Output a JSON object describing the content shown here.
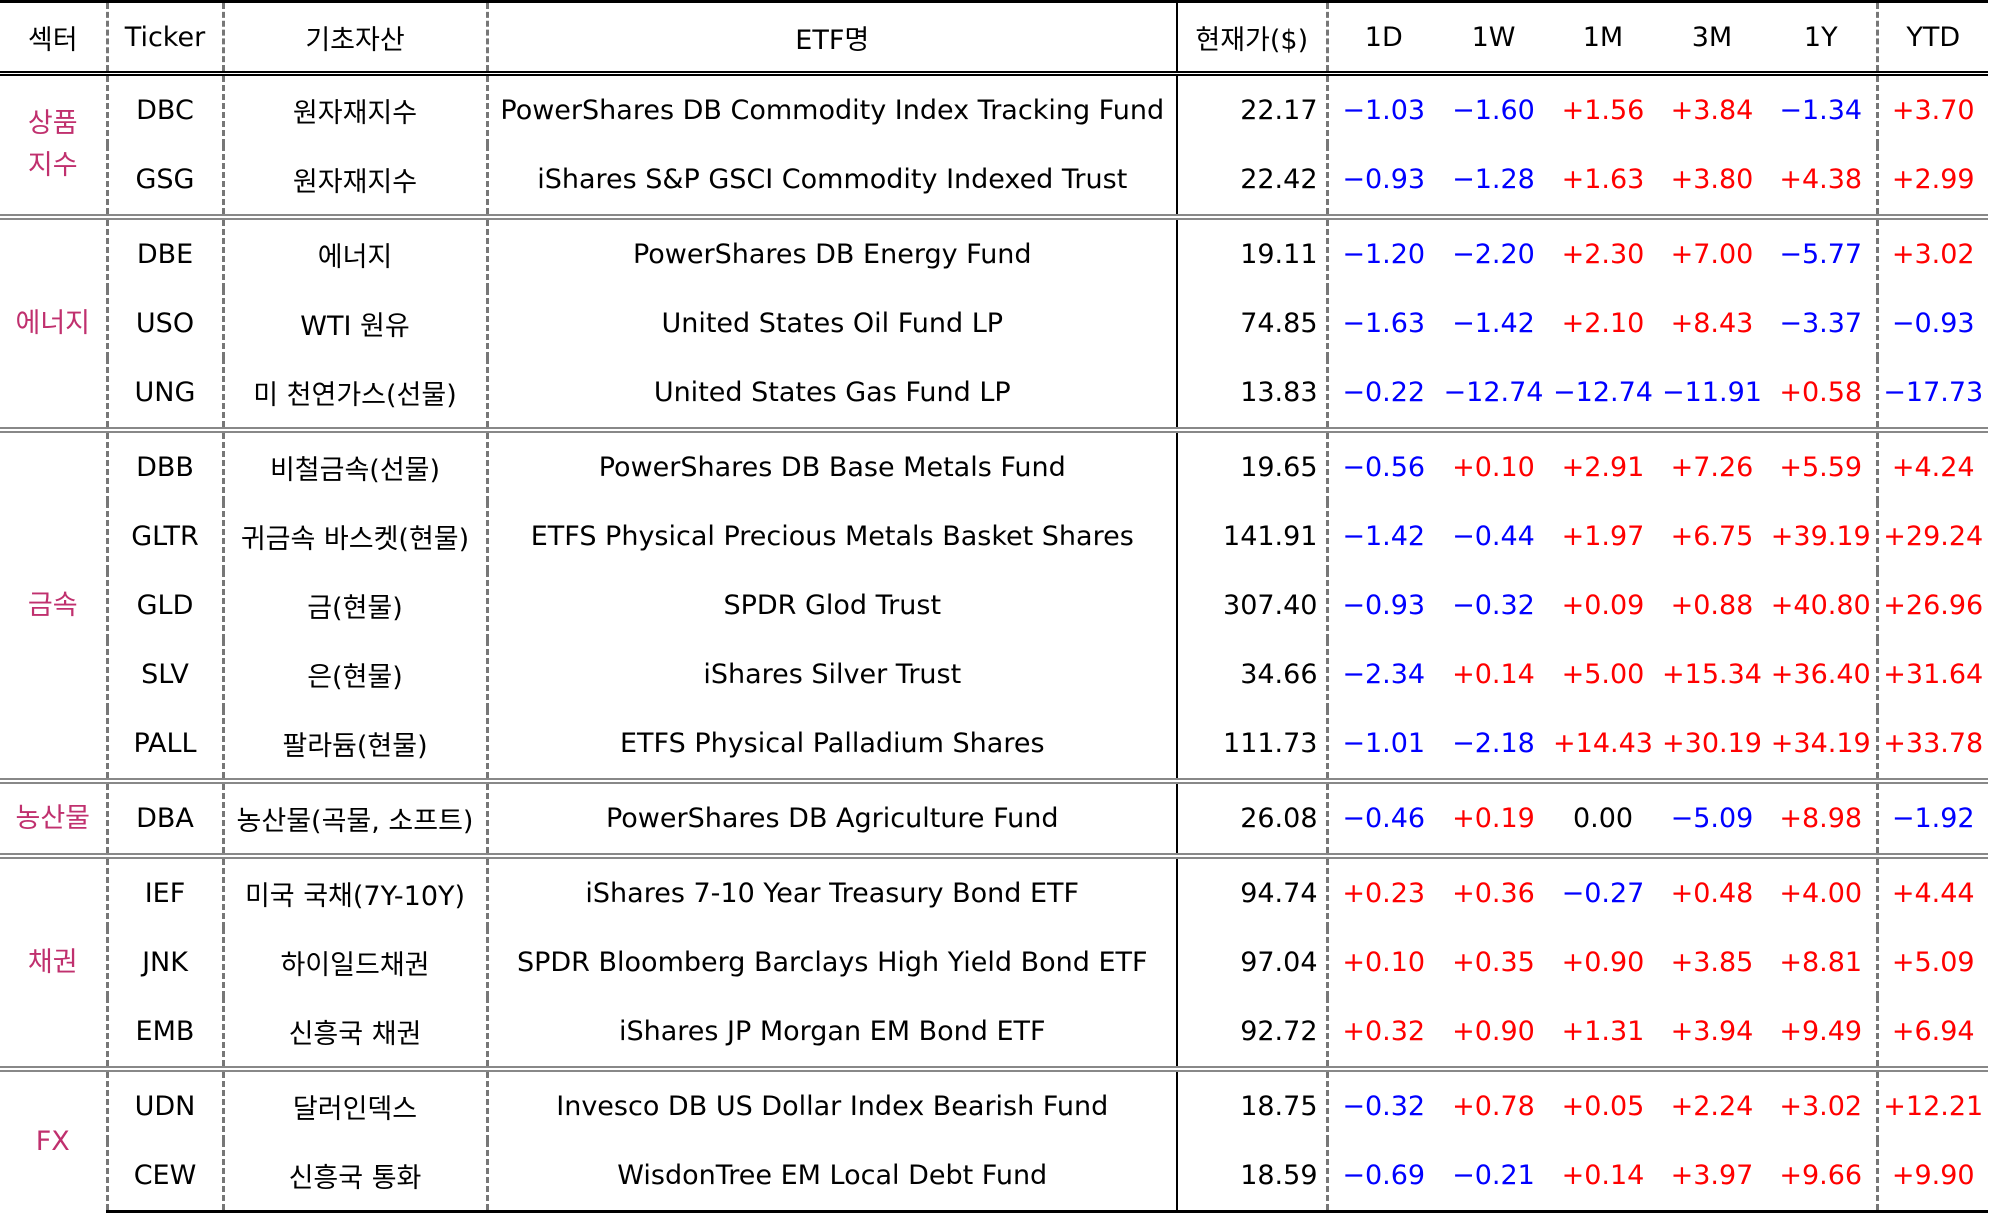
{
  "colors": {
    "sector": "#c0306e",
    "positive": "#ff0000",
    "negative": "#0000ff",
    "neutral": "#000000"
  },
  "headers": [
    "섹터",
    "Ticker",
    "기초자산",
    "ETF명",
    "현재가($)",
    "1D",
    "1W",
    "1M",
    "3M",
    "1Y",
    "YTD"
  ],
  "groups": [
    {
      "sector": "상품\n지수",
      "rows": [
        {
          "ticker": "DBC",
          "asset": "원자재지수",
          "name": "PowerShares DB Commodity Index Tracking Fund",
          "price": "22.17",
          "returns": [
            "-1.03",
            "-1.60",
            "+1.56",
            "+3.84",
            "-1.34",
            "+3.70"
          ]
        },
        {
          "ticker": "GSG",
          "asset": "원자재지수",
          "name": "iShares S&P GSCI Commodity Indexed Trust",
          "price": "22.42",
          "returns": [
            "-0.93",
            "-1.28",
            "+1.63",
            "+3.80",
            "+4.38",
            "+2.99"
          ]
        }
      ]
    },
    {
      "sector": "에너지",
      "rows": [
        {
          "ticker": "DBE",
          "asset": "에너지",
          "name": "PowerShares DB Energy Fund",
          "price": "19.11",
          "returns": [
            "-1.20",
            "-2.20",
            "+2.30",
            "+7.00",
            "-5.77",
            "+3.02"
          ]
        },
        {
          "ticker": "USO",
          "asset": "WTI 원유",
          "name": "United States Oil Fund LP",
          "price": "74.85",
          "returns": [
            "-1.63",
            "-1.42",
            "+2.10",
            "+8.43",
            "-3.37",
            "-0.93"
          ]
        },
        {
          "ticker": "UNG",
          "asset": "미 천연가스(선물)",
          "name": "United States Gas Fund LP",
          "price": "13.83",
          "returns": [
            "-0.22",
            "-12.74",
            "-12.74",
            "-11.91",
            "+0.58",
            "-17.73"
          ]
        }
      ]
    },
    {
      "sector": "금속",
      "rows": [
        {
          "ticker": "DBB",
          "asset": "비철금속(선물)",
          "name": "PowerShares DB Base Metals Fund",
          "price": "19.65",
          "returns": [
            "-0.56",
            "+0.10",
            "+2.91",
            "+7.26",
            "+5.59",
            "+4.24"
          ]
        },
        {
          "ticker": "GLTR",
          "asset": "귀금속 바스켓(현물)",
          "name": "ETFS Physical Precious Metals Basket Shares",
          "price": "141.91",
          "returns": [
            "-1.42",
            "-0.44",
            "+1.97",
            "+6.75",
            "+39.19",
            "+29.24"
          ]
        },
        {
          "ticker": "GLD",
          "asset": "금(현물)",
          "name": "SPDR Glod Trust",
          "price": "307.40",
          "returns": [
            "-0.93",
            "-0.32",
            "+0.09",
            "+0.88",
            "+40.80",
            "+26.96"
          ]
        },
        {
          "ticker": "SLV",
          "asset": "은(현물)",
          "name": "iShares Silver Trust",
          "price": "34.66",
          "returns": [
            "-2.34",
            "+0.14",
            "+5.00",
            "+15.34",
            "+36.40",
            "+31.64"
          ]
        },
        {
          "ticker": "PALL",
          "asset": "팔라듐(현물)",
          "name": "ETFS Physical Palladium Shares",
          "price": "111.73",
          "returns": [
            "-1.01",
            "-2.18",
            "+14.43",
            "+30.19",
            "+34.19",
            "+33.78"
          ]
        }
      ]
    },
    {
      "sector": "농산물",
      "rows": [
        {
          "ticker": "DBA",
          "asset": "농산물(곡물, 소프트)",
          "name": "PowerShares DB Agriculture Fund",
          "price": "26.08",
          "returns": [
            "-0.46",
            "+0.19",
            "0.00",
            "-5.09",
            "+8.98",
            "-1.92"
          ]
        }
      ]
    },
    {
      "sector": "채권",
      "rows": [
        {
          "ticker": "IEF",
          "asset": "미국 국채(7Y-10Y)",
          "name": "iShares 7-10 Year Treasury Bond ETF",
          "price": "94.74",
          "returns": [
            "+0.23",
            "+0.36",
            "-0.27",
            "+0.48",
            "+4.00",
            "+4.44"
          ]
        },
        {
          "ticker": "JNK",
          "asset": "하이일드채권",
          "name": "SPDR Bloomberg Barclays High Yield Bond ETF",
          "price": "97.04",
          "returns": [
            "+0.10",
            "+0.35",
            "+0.90",
            "+3.85",
            "+8.81",
            "+5.09"
          ]
        },
        {
          "ticker": "EMB",
          "asset": "신흥국 채권",
          "name": "iShares JP Morgan EM Bond ETF",
          "price": "92.72",
          "returns": [
            "+0.32",
            "+0.90",
            "+1.31",
            "+3.94",
            "+9.49",
            "+6.94"
          ]
        }
      ]
    },
    {
      "sector": "FX",
      "rows": [
        {
          "ticker": "UDN",
          "asset": "달러인덱스",
          "name": "Invesco DB US Dollar Index Bearish Fund",
          "price": "18.75",
          "returns": [
            "-0.32",
            "+0.78",
            "+0.05",
            "+2.24",
            "+3.02",
            "+12.21"
          ]
        },
        {
          "ticker": "CEW",
          "asset": "신흥국 통화",
          "name": "WisdonTree EM Local Debt Fund",
          "price": "18.59",
          "returns": [
            "-0.69",
            "-0.21",
            "+0.14",
            "+3.97",
            "+9.66",
            "+9.90"
          ]
        }
      ]
    }
  ]
}
